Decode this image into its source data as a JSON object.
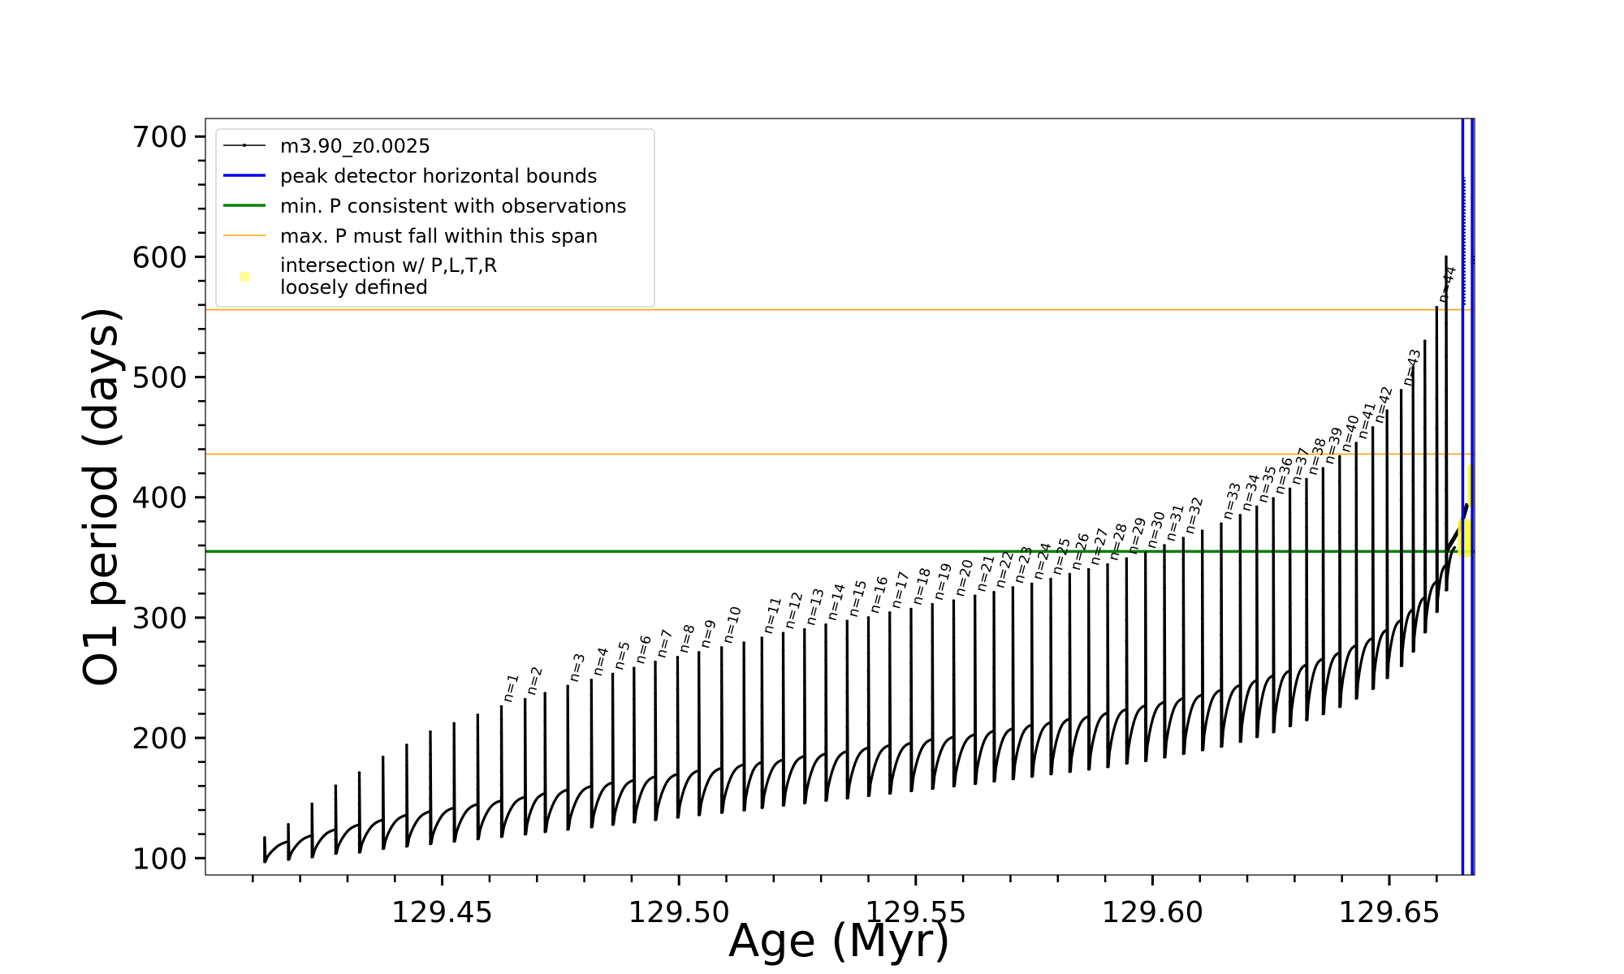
{
  "chart_data": {
    "type": "line",
    "title": "",
    "xlabel": "Age (Myr)",
    "ylabel": "O1 period (days)",
    "xlim": [
      129.4,
      129.668
    ],
    "ylim": [
      86,
      715
    ],
    "xticks": [
      129.45,
      129.5,
      129.55,
      129.6,
      129.65
    ],
    "xtick_labels": [
      "129.45",
      "129.50",
      "129.55",
      "129.60",
      "129.65"
    ],
    "yticks": [
      100,
      200,
      300,
      400,
      500,
      600,
      700
    ],
    "ytick_labels": [
      "100",
      "200",
      "300",
      "400",
      "500",
      "600",
      "700"
    ],
    "grid": false,
    "legend_position": "top-left",
    "legend": [
      {
        "label": "m3.90_z0.0025",
        "kind": "line-dot",
        "color": "#000000"
      },
      {
        "label": "peak detector horizontal bounds",
        "kind": "line",
        "color": "#0000ee"
      },
      {
        "label": "min. P consistent with observations",
        "kind": "line",
        "color": "#008000"
      },
      {
        "label": "max. P must fall within this span",
        "kind": "thin-line",
        "color": "#ffa500"
      },
      {
        "label": "intersection w/ P,L,T,R",
        "label2": "loosely defined",
        "kind": "marker",
        "color": "#ffff99"
      }
    ],
    "series": [
      {
        "name": "m3.90_z0.0025",
        "color": "#000000",
        "pulses": [
          {
            "age": 129.4125,
            "peak": 117,
            "min": 97,
            "after": 110,
            "label": ""
          },
          {
            "age": 129.4175,
            "peak": 128,
            "min": 99,
            "after": 115,
            "label": ""
          },
          {
            "age": 129.4225,
            "peak": 145,
            "min": 101,
            "after": 120,
            "label": ""
          },
          {
            "age": 129.4275,
            "peak": 160,
            "min": 104,
            "after": 124,
            "label": ""
          },
          {
            "age": 129.4325,
            "peak": 171,
            "min": 105,
            "after": 128,
            "label": ""
          },
          {
            "age": 129.4375,
            "peak": 184,
            "min": 108,
            "after": 132,
            "label": ""
          },
          {
            "age": 129.4425,
            "peak": 194,
            "min": 110,
            "after": 135,
            "label": ""
          },
          {
            "age": 129.4475,
            "peak": 205,
            "min": 112,
            "after": 138,
            "label": ""
          },
          {
            "age": 129.4525,
            "peak": 212,
            "min": 114,
            "after": 141,
            "label": ""
          },
          {
            "age": 129.4575,
            "peak": 219,
            "min": 116,
            "after": 144,
            "label": ""
          },
          {
            "age": 129.4625,
            "peak": 226,
            "min": 118,
            "after": 147,
            "label": "n=1"
          },
          {
            "age": 129.4675,
            "peak": 232,
            "min": 120,
            "after": 150,
            "label": "n=2"
          },
          {
            "age": 129.4717,
            "peak": 237,
            "min": 122,
            "after": 153,
            "label": ""
          },
          {
            "age": 129.4765,
            "peak": 243,
            "min": 124,
            "after": 156,
            "label": "n=3"
          },
          {
            "age": 129.4815,
            "peak": 248,
            "min": 126,
            "after": 159,
            "label": "n=4"
          },
          {
            "age": 129.486,
            "peak": 253,
            "min": 128,
            "after": 161,
            "label": "n=5"
          },
          {
            "age": 129.4905,
            "peak": 258,
            "min": 130,
            "after": 164,
            "label": "n=6"
          },
          {
            "age": 129.495,
            "peak": 263,
            "min": 132,
            "after": 166,
            "label": "n=7"
          },
          {
            "age": 129.4997,
            "peak": 267,
            "min": 134,
            "after": 169,
            "label": "n=8"
          },
          {
            "age": 129.5042,
            "peak": 271,
            "min": 136,
            "after": 171,
            "label": "n=9"
          },
          {
            "age": 129.509,
            "peak": 275,
            "min": 138,
            "after": 174,
            "label": "n=10"
          },
          {
            "age": 129.5137,
            "peak": 279,
            "min": 140,
            "after": 176,
            "label": ""
          },
          {
            "age": 129.5175,
            "peak": 283,
            "min": 142,
            "after": 178,
            "label": "n=11"
          },
          {
            "age": 129.522,
            "peak": 287,
            "min": 144,
            "after": 181,
            "label": "n=12"
          },
          {
            "age": 129.5265,
            "peak": 290,
            "min": 146,
            "after": 183,
            "label": "n=13"
          },
          {
            "age": 129.531,
            "peak": 294,
            "min": 148,
            "after": 185,
            "label": "n=14"
          },
          {
            "age": 129.5355,
            "peak": 297,
            "min": 150,
            "after": 188,
            "label": "n=15"
          },
          {
            "age": 129.54,
            "peak": 300,
            "min": 152,
            "after": 190,
            "label": "n=16"
          },
          {
            "age": 129.5445,
            "peak": 304,
            "min": 154,
            "after": 192,
            "label": "n=17"
          },
          {
            "age": 129.549,
            "peak": 307,
            "min": 156,
            "after": 195,
            "label": "n=18"
          },
          {
            "age": 129.5535,
            "peak": 311,
            "min": 158,
            "after": 197,
            "label": "n=19"
          },
          {
            "age": 129.558,
            "peak": 314,
            "min": 160,
            "after": 199,
            "label": "n=20"
          },
          {
            "age": 129.5625,
            "peak": 318,
            "min": 162,
            "after": 202,
            "label": "n=21"
          },
          {
            "age": 129.5665,
            "peak": 321,
            "min": 164,
            "after": 204,
            "label": "n=22"
          },
          {
            "age": 129.5705,
            "peak": 325,
            "min": 166,
            "after": 207,
            "label": "n=23"
          },
          {
            "age": 129.5745,
            "peak": 328,
            "min": 168,
            "after": 209,
            "label": "n=24"
          },
          {
            "age": 129.5785,
            "peak": 332,
            "min": 170,
            "after": 212,
            "label": "n=25"
          },
          {
            "age": 129.5825,
            "peak": 336,
            "min": 172,
            "after": 214,
            "label": "n=26"
          },
          {
            "age": 129.5865,
            "peak": 340,
            "min": 174,
            "after": 217,
            "label": "n=27"
          },
          {
            "age": 129.5905,
            "peak": 344,
            "min": 176,
            "after": 220,
            "label": "n=28"
          },
          {
            "age": 129.5945,
            "peak": 349,
            "min": 179,
            "after": 223,
            "label": "n=29"
          },
          {
            "age": 129.5985,
            "peak": 354,
            "min": 181,
            "after": 226,
            "label": "n=30"
          },
          {
            "age": 129.6025,
            "peak": 360,
            "min": 184,
            "after": 229,
            "label": "n=31"
          },
          {
            "age": 129.6065,
            "peak": 366,
            "min": 187,
            "after": 232,
            "label": "n=32"
          },
          {
            "age": 129.6105,
            "peak": 372,
            "min": 190,
            "after": 236,
            "label": ""
          },
          {
            "age": 129.6145,
            "peak": 378,
            "min": 193,
            "after": 240,
            "label": "n=33"
          },
          {
            "age": 129.6185,
            "peak": 385,
            "min": 197,
            "after": 244,
            "label": "n=34"
          },
          {
            "age": 129.622,
            "peak": 392,
            "min": 201,
            "after": 248,
            "label": "n=35"
          },
          {
            "age": 129.6255,
            "peak": 399,
            "min": 205,
            "after": 252,
            "label": "n=36"
          },
          {
            "age": 129.629,
            "peak": 407,
            "min": 210,
            "after": 257,
            "label": "n=37"
          },
          {
            "age": 129.6325,
            "peak": 415,
            "min": 215,
            "after": 262,
            "label": "n=38"
          },
          {
            "age": 129.636,
            "peak": 424,
            "min": 220,
            "after": 267,
            "label": "n=39"
          },
          {
            "age": 129.6395,
            "peak": 434,
            "min": 226,
            "after": 273,
            "label": "n=40"
          },
          {
            "age": 129.643,
            "peak": 445,
            "min": 233,
            "after": 279,
            "label": "n=41"
          },
          {
            "age": 129.6465,
            "peak": 458,
            "min": 241,
            "after": 286,
            "label": "n=42"
          },
          {
            "age": 129.6495,
            "peak": 472,
            "min": 250,
            "after": 294,
            "label": ""
          },
          {
            "age": 129.6525,
            "peak": 489,
            "min": 260,
            "after": 303,
            "label": "n=43"
          },
          {
            "age": 129.655,
            "peak": 508,
            "min": 272,
            "after": 313,
            "label": ""
          },
          {
            "age": 129.6575,
            "peak": 530,
            "min": 288,
            "after": 326,
            "label": ""
          },
          {
            "age": 129.66,
            "peak": 558,
            "min": 305,
            "after": 340,
            "label": "n=44"
          },
          {
            "age": 129.662,
            "peak": 600,
            "min": 323,
            "after": 355,
            "label": ""
          }
        ],
        "end_segment": [
          [
            129.662,
            355
          ],
          [
            129.665,
            375
          ],
          [
            129.6665,
            395
          ]
        ],
        "spikes": [
          {
            "age": 129.6655,
            "min": 560,
            "max": 666
          },
          {
            "age": 129.6675,
            "min": 594,
            "max": 601
          }
        ]
      }
    ],
    "vertical_lines": [
      {
        "x": 129.6655,
        "color": "#0000ee"
      },
      {
        "x": 129.6675,
        "color": "#0000ee"
      }
    ],
    "horizontal_lines": [
      {
        "y": 355,
        "color": "#008000",
        "style": "thick"
      },
      {
        "y": 436,
        "color": "#ffa500",
        "style": "thin"
      },
      {
        "y": 556,
        "color": "#ffa500",
        "style": "thin"
      }
    ],
    "intersections": [
      {
        "x": 129.6655,
        "y_from": 350,
        "y_to": 382
      },
      {
        "x": 129.6675,
        "y_from": 392,
        "y_to": 428
      }
    ]
  }
}
